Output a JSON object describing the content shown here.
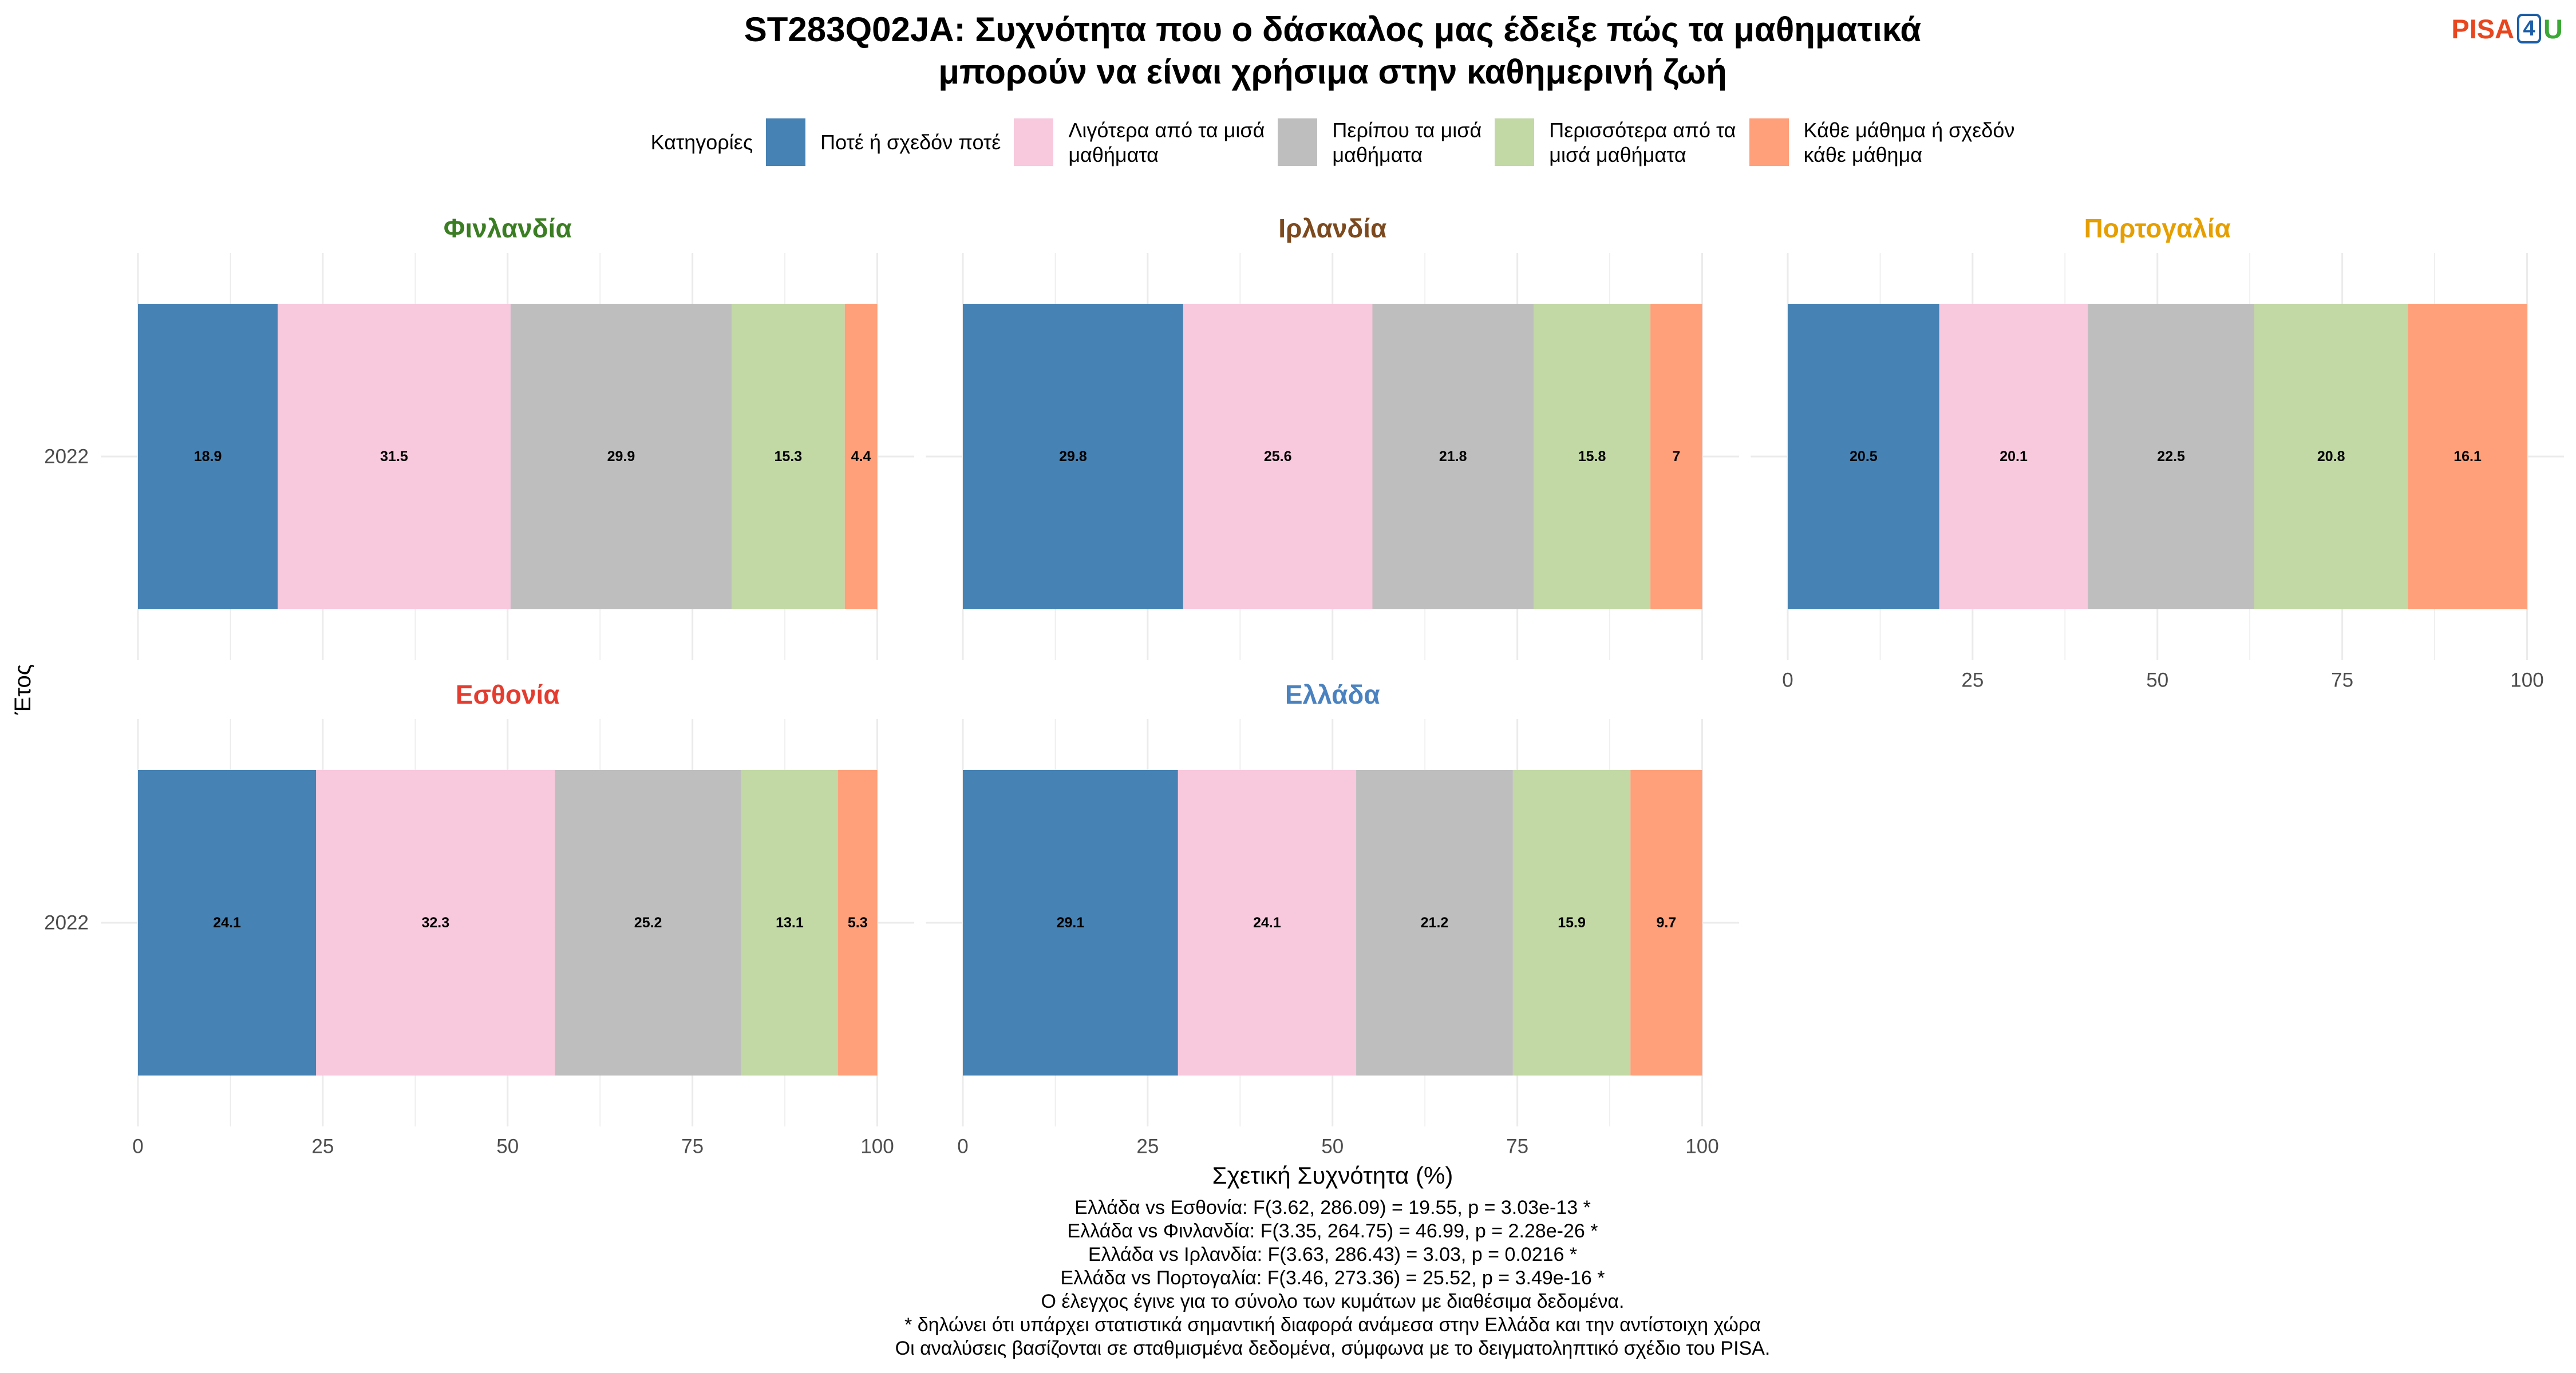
{
  "logo": {
    "text_pisa": "PISA",
    "text_four": "4",
    "text_u": "U",
    "colors": {
      "pisa": "#e8461e",
      "four": "#1d5ea8",
      "u": "#3aa935"
    }
  },
  "chart_data": {
    "type": "bar",
    "orientation": "horizontal",
    "stacked": true,
    "title": "ST283Q02JA: Συχνότητα που ο δάσκαλος μας έδειξε πώς τα μαθηματικά\nμπορούν να είναι χρήσιμα στην καθημερινή ζωή",
    "xlabel": "Σχετική Συχνότητα (%)",
    "ylabel": "Έτος",
    "xlim": [
      0,
      100
    ],
    "x_ticks": [
      0,
      25,
      50,
      75,
      100
    ],
    "grid": true,
    "data_labels": true,
    "legend": {
      "title": "Κατηγορίες",
      "position": "top"
    },
    "categories": [
      "Ποτέ ή σχεδόν ποτέ",
      "Λιγότερα από τα μισά\nμαθήματα",
      "Περίπου τα μισά\nμαθήματα",
      "Περισσότερα από τα\nμισά μαθήματα",
      "Κάθε μάθημα ή σχεδόν\nκάθε μάθημα"
    ],
    "category_colors": [
      "#4682b4",
      "#f8c8dc",
      "#bebebe",
      "#c2d8a5",
      "#ffa07a"
    ],
    "y_categories": [
      "2022"
    ],
    "facets": [
      {
        "name": "Φινλανδία",
        "name_color": "#3b7d23",
        "values": [
          18.9,
          31.5,
          29.9,
          15.3,
          4.4
        ]
      },
      {
        "name": "Ιρλανδία",
        "name_color": "#7c4a1e",
        "values": [
          29.8,
          25.6,
          21.8,
          15.8,
          7
        ]
      },
      {
        "name": "Πορτογαλία",
        "name_color": "#e69f00",
        "values": [
          20.5,
          20.1,
          22.5,
          20.8,
          16.1
        ]
      },
      {
        "name": "Εσθονία",
        "name_color": "#e43d30",
        "values": [
          24.1,
          32.3,
          25.2,
          13.1,
          5.3
        ]
      },
      {
        "name": "Ελλάδα",
        "name_color": "#4a82c0",
        "values": [
          29.1,
          24.1,
          21.2,
          15.9,
          9.7
        ]
      }
    ]
  },
  "caption": [
    "Ελλάδα vs Εσθονία: F(3.62, 286.09) = 19.55, p = 3.03e-13 *",
    "Ελλάδα vs Φινλανδία: F(3.35, 264.75) = 46.99, p = 2.28e-26 *",
    "Ελλάδα vs Ιρλανδία: F(3.63, 286.43) = 3.03, p = 0.0216 *",
    "Ελλάδα vs Πορτογαλία: F(3.46, 273.36) = 25.52, p = 3.49e-16 *",
    "Ο έλεγχος έγινε για το σύνολο των κυμάτων με διαθέσιμα δεδομένα.",
    "* δηλώνει ότι υπάρχει στατιστικά σημαντική διαφορά ανάμεσα στην Ελλάδα και την αντίστοιχη χώρα",
    "Οι αναλύσεις βασίζονται σε σταθμισμένα δεδομένα, σύμφωνα με το δειγματοληπτικό σχέδιο του PISA."
  ]
}
